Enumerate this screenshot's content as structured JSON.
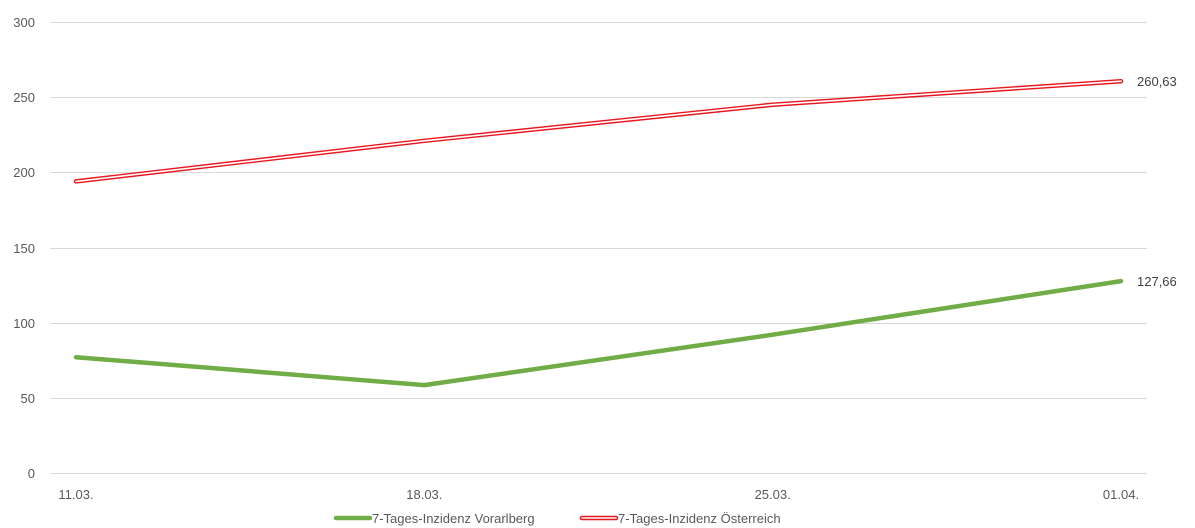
{
  "chart_data": {
    "type": "line",
    "title": "",
    "xlabel": "",
    "ylabel": "",
    "categories": [
      "11.03.",
      "18.03.",
      "25.03.",
      "01.04."
    ],
    "ylim": [
      0,
      300
    ],
    "yticks": [
      0,
      50,
      100,
      150,
      200,
      250,
      300
    ],
    "grid": true,
    "legend_position": "bottom",
    "series": [
      {
        "name": "7-Tages-Inzidenz Vorarlberg",
        "values": [
          77,
          58.5,
          92,
          127.66
        ],
        "color": "#70AD47",
        "style": "solid",
        "end_label": "127,66"
      },
      {
        "name": "7-Tages-Inzidenz Österreich",
        "values": [
          194,
          221,
          245,
          260.63
        ],
        "color": "#E8171F",
        "style": "double",
        "end_label": "260,63"
      }
    ]
  }
}
